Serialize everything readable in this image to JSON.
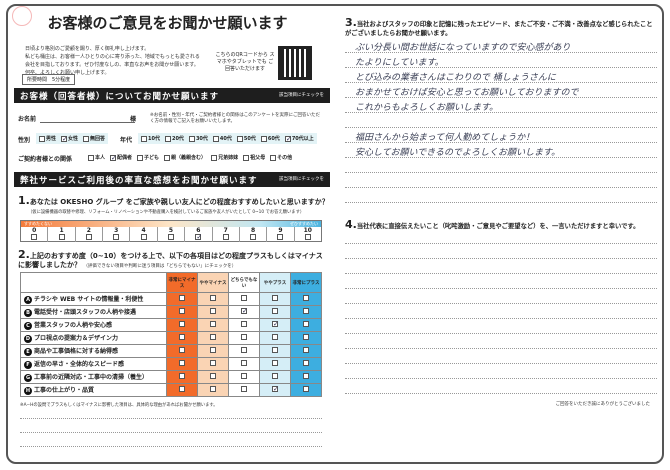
{
  "title": "お客様のご意見をお聞かせ願います",
  "intro": [
    "日頃より格別のご愛顧を賜り、厚く御礼申し上げます。",
    "私ども桶庄は、お客様一人ひとりの心に寄り添った、地域でもっとも愛される",
    "会社を目指しております。ぜひ忖度なしの、率直なお声をお聞かせ願います。",
    "何卒、よろしくお願い申し上げます。"
  ],
  "time_required": "所要時間　5分程度",
  "qr_text": "こちらのQRコードから スマホやタブレットでも ご回答いただけます",
  "section1": {
    "title": "お客様（回答者様）についてお聞かせ願います",
    "note": "該当項目にチェックを"
  },
  "name_label": "お名前",
  "name_suffix": "様",
  "name_note": "※お名前・性別・年代・ご契約者様との関係はこのアンケートを実際にご回答いただく方の情報でご記入をお願いいたします。",
  "gender": {
    "label": "性別",
    "options": [
      {
        "label": "男性",
        "checked": false
      },
      {
        "label": "女性",
        "checked": true
      },
      {
        "label": "無回答",
        "checked": false
      }
    ]
  },
  "age": {
    "label": "年代",
    "options": [
      {
        "label": "10代",
        "checked": false
      },
      {
        "label": "20代",
        "checked": false
      },
      {
        "label": "30代",
        "checked": false
      },
      {
        "label": "40代",
        "checked": false
      },
      {
        "label": "50代",
        "checked": false
      },
      {
        "label": "60代",
        "checked": false
      },
      {
        "label": "70代以上",
        "checked": true
      }
    ]
  },
  "relation": {
    "label": "ご契約者様との関係",
    "options": [
      {
        "label": "本人",
        "checked": false
      },
      {
        "label": "配偶者",
        "checked": true
      },
      {
        "label": "子ども",
        "checked": false
      },
      {
        "label": "親（義親含む）",
        "checked": false
      },
      {
        "label": "兄弟姉妹",
        "checked": false
      },
      {
        "label": "祖父母",
        "checked": false
      },
      {
        "label": "その他",
        "checked": false
      }
    ]
  },
  "section2": {
    "title": "弊社サービスご利用後の率直な感想をお聞かせ願います",
    "note": "該当項目にチェックを"
  },
  "q1": {
    "num": "1.",
    "text": "あなたは OKESHO グループ をご家族や親しい友人にどの程度おすすめしたいと思いますか？",
    "sub": "（仮に設備機器の取替や修理、リフォーム・リノベーションや不動産購入を検討しているご家族や友人がいたとして 0~10 でお答え願います）",
    "low": "すすめたくない",
    "high": "ぜひすすめたい",
    "scale": [
      "0",
      "1",
      "2",
      "3",
      "4",
      "5",
      "6",
      "7",
      "8",
      "9",
      "10"
    ],
    "selected": 6
  },
  "q2": {
    "num": "2.",
    "text": "上記のおすすめ度（0~10）をつける上で、以下の各項目はどの程度プラスもしくはマイナスに影響しましたか？",
    "sub": "（評価できない項目や判断に迷う項目は「どちらでもない」にチェックを）",
    "columns": [
      "非常にマイナス",
      "ややマイナス",
      "どちらでもない",
      "ややプラス",
      "非常にプラス"
    ],
    "rows": [
      {
        "letter": "A",
        "label": "チラシや WEB サイトの情報量・利便性",
        "selected": null
      },
      {
        "letter": "B",
        "label": "電話受付・店頭スタッフの人柄や接遇",
        "selected": 2
      },
      {
        "letter": "C",
        "label": "営業スタッフの人柄や安心感",
        "selected": 3
      },
      {
        "letter": "D",
        "label": "プロ視点の提案力＆デザイン力",
        "selected": null
      },
      {
        "letter": "E",
        "label": "商品や工事価格に対する納得感",
        "selected": null
      },
      {
        "letter": "F",
        "label": "返信の早さ・全体的なスピード感",
        "selected": null
      },
      {
        "letter": "G",
        "label": "工事前の近隣対応・工事中の清掃（養生）",
        "selected": null
      },
      {
        "letter": "H",
        "label": "工事の仕上がり・品質",
        "selected": 3
      }
    ],
    "note": "※A−Hの設問でプラスもしくはマイナスに影響した項目は、具体的な理由があればお聞かせ願います。"
  },
  "q3": {
    "num": "3.",
    "text": "当社およびスタッフの印象と記憶に残ったエピソード、またご不安・ご不満・改善点など感じられたことがございましたらお聞かせ願います。",
    "answer": [
      "ぶい分長い間お世話になっていますので安心感があり",
      "たよりにしています。",
      "とび込みの業者さんはこわりので 桶しょうさんに",
      "おまかせておけば安心と思ってお願いしておりますので",
      "これからもよろしくお願いします。",
      "",
      "福田さんから始まって何人勤めてしょうか！",
      "安心してお願いできるのでよろしくお願いします。"
    ]
  },
  "q4": {
    "num": "4.",
    "text": "当社代表に直接伝えたいこと（叱咤激励・ご意見やご要望など）を、一言いただけますと幸いです。"
  },
  "thanks": "ご回答をいただき誠にありがとうございました"
}
